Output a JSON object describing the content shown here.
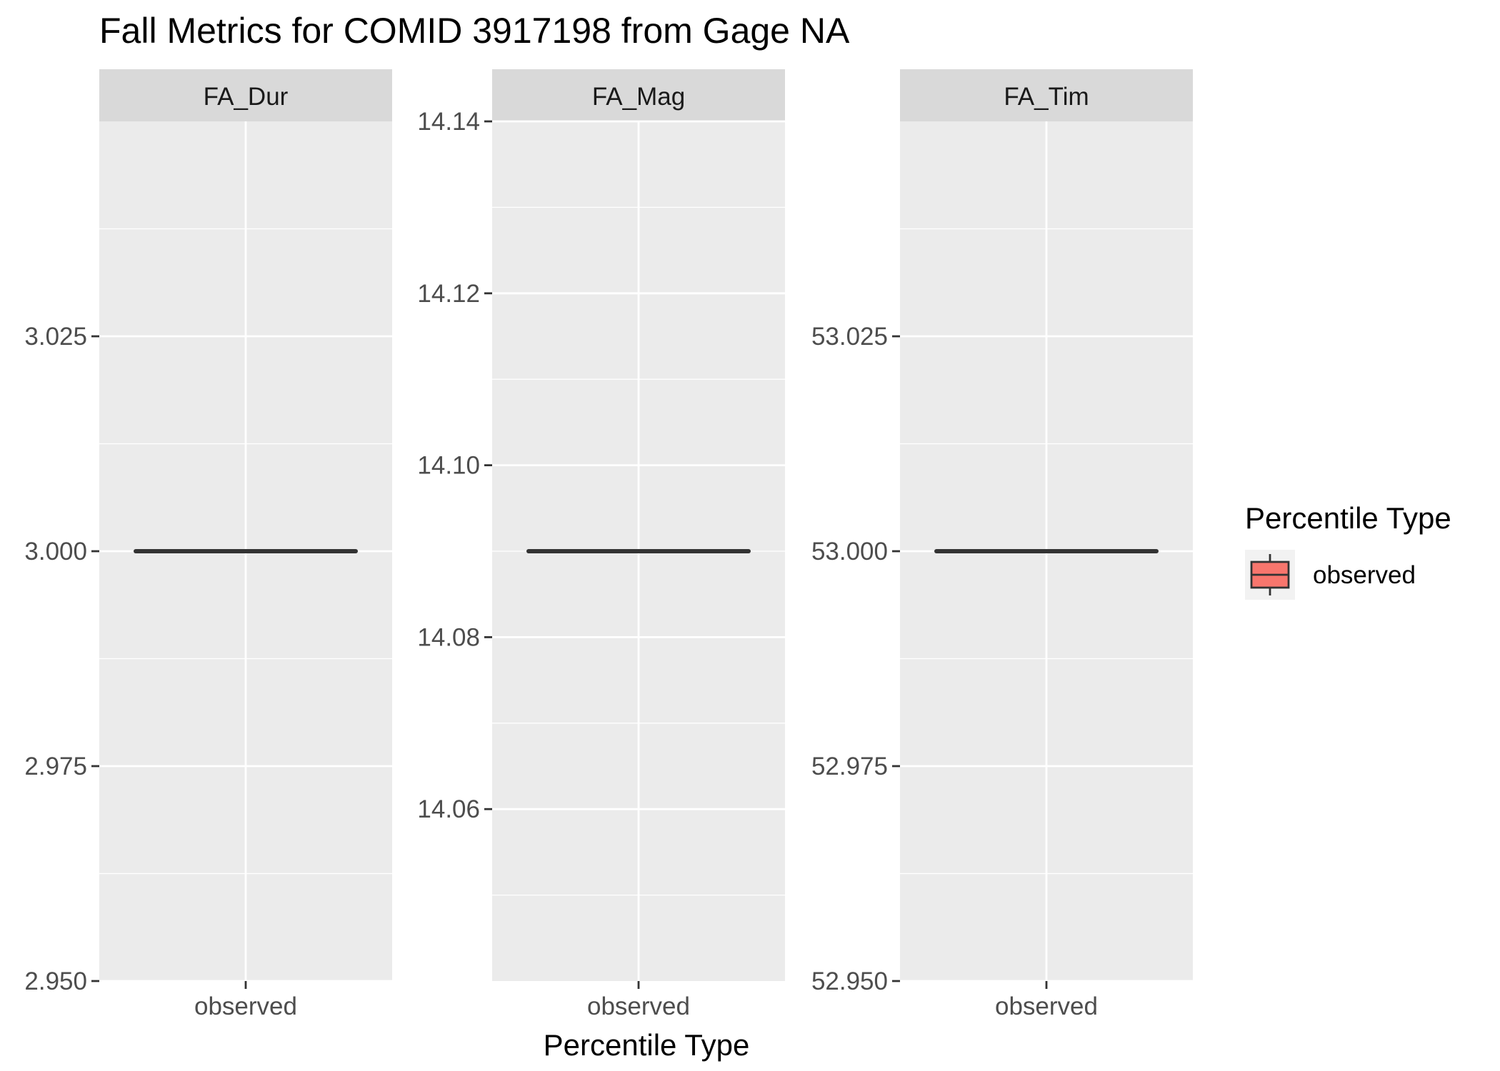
{
  "chart_data": {
    "type": "box",
    "title": "Fall Metrics for COMID 3917198 from Gage NA",
    "xlabel": "Percentile Type",
    "ylabel": "",
    "legend": {
      "title": "Percentile Type",
      "position": "right",
      "entries": [
        {
          "label": "observed",
          "color": "#F8766D"
        }
      ]
    },
    "grid": true,
    "colors": {
      "panel_bg": "#EBEBEB",
      "strip_bg": "#D9D9D9",
      "grid": "#FFFFFF",
      "box_fill": "#F8766D",
      "box_line": "#333333",
      "text": "#000000",
      "tick_text": "#4D4D4D"
    },
    "panels": [
      {
        "strip": "FA_Dur",
        "categories": [
          "observed"
        ],
        "ylim": [
          2.95,
          3.05
        ],
        "yticks": [
          2.95,
          2.975,
          3.0,
          3.025
        ],
        "ytick_labels": [
          "2.950",
          "2.975",
          "3.000",
          "3.025"
        ],
        "values": [
          3.0
        ]
      },
      {
        "strip": "FA_Mag",
        "categories": [
          "observed"
        ],
        "ylim": [
          14.04,
          14.14
        ],
        "yticks": [
          14.06,
          14.08,
          14.1,
          14.12,
          14.14
        ],
        "ytick_labels": [
          "14.06",
          "14.08",
          "14.10",
          "14.12",
          "14.14"
        ],
        "values": [
          14.09
        ]
      },
      {
        "strip": "FA_Tim",
        "categories": [
          "observed"
        ],
        "ylim": [
          52.95,
          53.05
        ],
        "yticks": [
          52.95,
          52.975,
          53.0,
          53.025
        ],
        "ytick_labels": [
          "52.950",
          "52.975",
          "53.000",
          "53.025"
        ],
        "values": [
          53.0
        ]
      }
    ]
  }
}
